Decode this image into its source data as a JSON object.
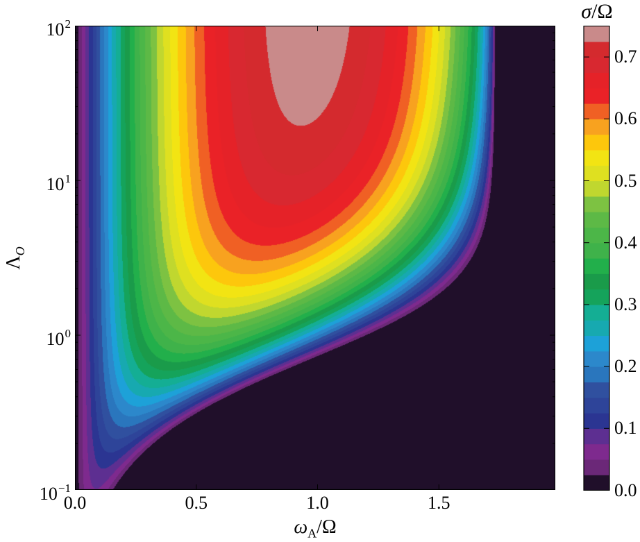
{
  "chart_data": {
    "type": "heatmap",
    "style": "filled-contour",
    "xlabel_main": "ω",
    "xlabel_sub": "A",
    "xlabel_tail": "/Ω",
    "ylabel_main": "Λ",
    "ylabel_sub": "O",
    "colorbar_title_main": "σ",
    "colorbar_title_tail": "/Ω",
    "xlim": [
      0,
      1.98
    ],
    "ylim": [
      0.1,
      100
    ],
    "yscale": "log",
    "x_ticks": [
      {
        "value": 0.0,
        "label": "0.0"
      },
      {
        "value": 0.5,
        "label": "0.5"
      },
      {
        "value": 1.0,
        "label": "1.0"
      },
      {
        "value": 1.5,
        "label": "1.5"
      }
    ],
    "y_ticks": [
      {
        "value": 0.1,
        "base": "10",
        "exp": "−1"
      },
      {
        "value": 1,
        "base": "10",
        "exp": "0"
      },
      {
        "value": 10,
        "base": "10",
        "exp": "1"
      },
      {
        "value": 100,
        "base": "10",
        "exp": "2"
      }
    ],
    "colorbar_ticks": [
      {
        "value": 0.0,
        "label": "0.0"
      },
      {
        "value": 0.1,
        "label": "0.1"
      },
      {
        "value": 0.2,
        "label": "0.2"
      },
      {
        "value": 0.3,
        "label": "0.3"
      },
      {
        "value": 0.4,
        "label": "0.4"
      },
      {
        "value": 0.5,
        "label": "0.5"
      },
      {
        "value": 0.6,
        "label": "0.6"
      },
      {
        "value": 0.7,
        "label": "0.7"
      }
    ],
    "colorbar_range": [
      0,
      0.75
    ],
    "level_step": 0.025,
    "max_value": 0.75,
    "max_location": {
      "x": 0.97,
      "y": 100
    },
    "colors": [
      "#200f2a",
      "#6b2878",
      "#7e2a8e",
      "#5d2f91",
      "#2b3592",
      "#2e4499",
      "#30509f",
      "#2a76bd",
      "#2c88cb",
      "#1da1d8",
      "#17a9b0",
      "#14ae94",
      "#15a35b",
      "#1a9b4a",
      "#22af4b",
      "#3fb24a",
      "#4cb648",
      "#5db946",
      "#7dc242",
      "#c0d72f",
      "#dfe020",
      "#f2e413",
      "#fdc70c",
      "#f8a21f",
      "#f06024",
      "#ea2227",
      "#e52228",
      "#d82830",
      "#d42a2e",
      "#c98a8a"
    ]
  }
}
